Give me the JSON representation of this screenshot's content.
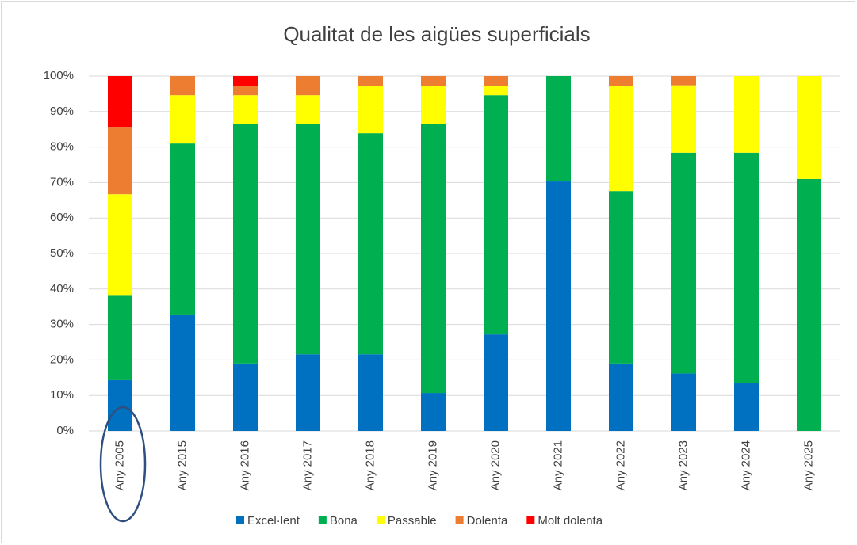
{
  "chart_data": {
    "type": "stacked_bar",
    "title": "Qualitat de les aigües superficials",
    "categories": [
      "Any 2005",
      "Any 2015",
      "Any 2016",
      "Any 2017",
      "Any 2018",
      "Any 2019",
      "Any 2020",
      "Any 2021",
      "Any 2022",
      "Any 2023",
      "Any 2024",
      "Any 2025"
    ],
    "series": [
      {
        "name": "Excel·lent",
        "color": "#0070c0",
        "values": [
          14.3,
          32.6,
          19,
          21.6,
          21.6,
          10.7,
          27.2,
          70.3,
          19,
          16.2,
          13.5,
          0
        ]
      },
      {
        "name": "Bona",
        "color": "#00b050",
        "values": [
          23.8,
          48.4,
          67.4,
          64.8,
          62.3,
          75.7,
          67.4,
          29.7,
          48.6,
          62.2,
          64.9,
          71
        ]
      },
      {
        "name": "Passable",
        "color": "#ffff00",
        "values": [
          28.6,
          13.6,
          8.2,
          8.2,
          13.4,
          10.9,
          2.7,
          0,
          29.7,
          19,
          21.6,
          29
        ]
      },
      {
        "name": "Dolenta",
        "color": "#ed7d31",
        "values": [
          19,
          5.4,
          2.7,
          5.4,
          2.7,
          2.7,
          2.7,
          0,
          2.7,
          2.6,
          0,
          0
        ]
      },
      {
        "name": "Molt dolenta",
        "color": "#ff0000",
        "values": [
          14.3,
          0,
          2.7,
          0,
          0,
          0,
          0,
          0,
          0,
          0,
          0,
          0
        ]
      }
    ],
    "ylim": [
      0,
      100
    ],
    "yticks": [
      {
        "value": 0,
        "label": "0%"
      },
      {
        "value": 10,
        "label": "10%"
      },
      {
        "value": 20,
        "label": "20%"
      },
      {
        "value": 30,
        "label": "30%"
      },
      {
        "value": 40,
        "label": "40%"
      },
      {
        "value": 50,
        "label": "50%"
      },
      {
        "value": 60,
        "label": "60%"
      },
      {
        "value": 70,
        "label": "70%"
      },
      {
        "value": 80,
        "label": "80%"
      },
      {
        "value": 90,
        "label": "90%"
      },
      {
        "value": 100,
        "label": "100%"
      }
    ],
    "grid": true
  }
}
